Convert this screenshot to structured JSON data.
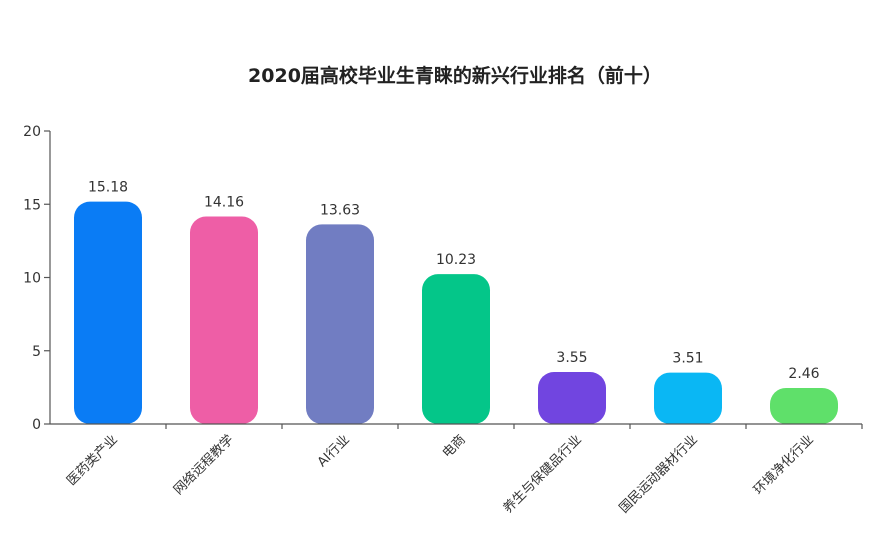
{
  "chart_data": {
    "type": "bar",
    "title": "2020届高校毕业生青睐的新兴行业排名（前十）",
    "xlabel": "",
    "ylabel": "",
    "ylim": [
      0,
      20
    ],
    "yticks": [
      0,
      5,
      10,
      15,
      20
    ],
    "grid": false,
    "legend": "none",
    "categories": [
      "医药类产业",
      "网络远程教学",
      "AI行业",
      "电商",
      "养生与保健品行业",
      "国民运动器材行业",
      "环境净化行业"
    ],
    "values": [
      15.18,
      14.16,
      13.63,
      10.23,
      3.55,
      3.51,
      2.46
    ],
    "value_labels": [
      "15.18",
      "14.16",
      "13.63",
      "10.23",
      "3.55",
      "3.51",
      "2.46"
    ],
    "colors": [
      "#0a7cf5",
      "#ee5ea6",
      "#717dc2",
      "#04c689",
      "#7145e0",
      "#0ab7f4",
      "#5fe06a"
    ]
  }
}
